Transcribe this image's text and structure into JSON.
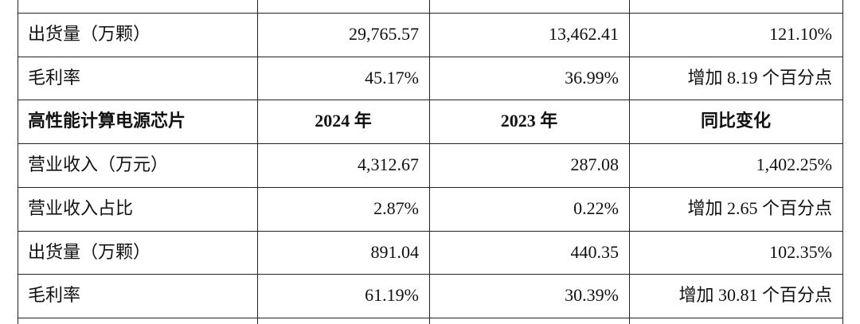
{
  "table": {
    "sections": [
      {
        "rows": [
          [
            "出货量（万颗）",
            "29,765.57",
            "13,462.41",
            "121.10%"
          ],
          [
            "毛利率",
            "45.17%",
            "36.99%",
            "增加 8.19 个百分点"
          ]
        ]
      },
      {
        "header": [
          "高性能计算电源芯片",
          "2024 年",
          "2023 年",
          "同比变化"
        ],
        "rows": [
          [
            "营业收入（万元）",
            "4,312.67",
            "287.08",
            "1,402.25%"
          ],
          [
            "营业收入占比",
            "2.87%",
            "0.22%",
            "增加 2.65 个百分点"
          ],
          [
            "出货量（万颗）",
            "891.04",
            "440.35",
            "102.35%"
          ],
          [
            "毛利率",
            "61.19%",
            "30.39%",
            "增加 30.81 个百分点"
          ]
        ]
      }
    ]
  }
}
